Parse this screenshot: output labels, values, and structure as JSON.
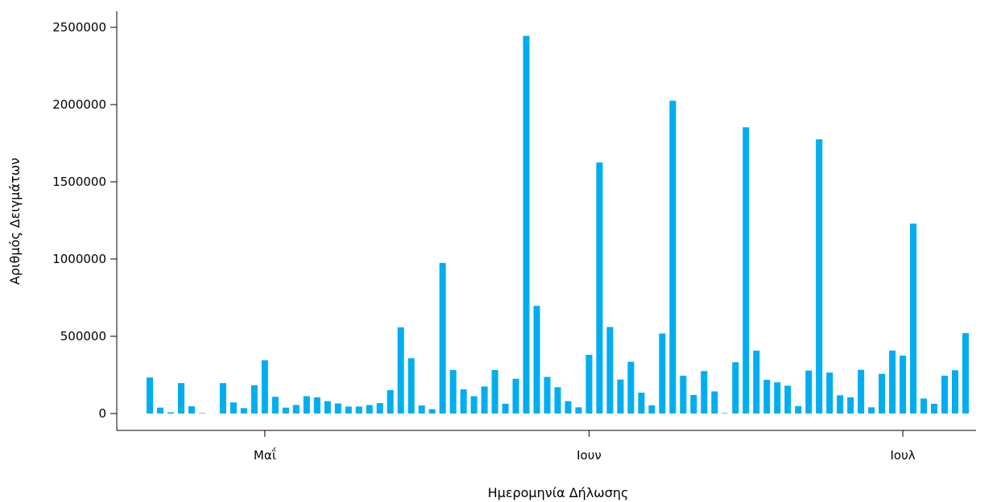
{
  "chart_data": {
    "type": "bar",
    "xlabel": "Ημερομηνία Δήλωσης",
    "ylabel": "Αριθμός Δειγμάτων",
    "x_tick_labels": [
      "Μαΐ",
      "Ιουν",
      "Ιουλ"
    ],
    "x_ticks": [
      "2021-05-01",
      "2021-06-01",
      "2021-07-01"
    ],
    "y_ticks": [
      0,
      500000,
      1000000,
      1500000,
      2000000,
      2500000
    ],
    "ylim": [
      0,
      2500000
    ],
    "xlim": [
      "2021-04-19",
      "2021-07-08"
    ],
    "bar_color": "#00AEEF",
    "grid": false,
    "x": [
      "2021-04-20",
      "2021-04-21",
      "2021-04-22",
      "2021-04-23",
      "2021-04-24",
      "2021-04-25",
      "2021-04-26",
      "2021-04-27",
      "2021-04-28",
      "2021-04-29",
      "2021-04-30",
      "2021-05-01",
      "2021-05-02",
      "2021-05-03",
      "2021-05-04",
      "2021-05-05",
      "2021-05-06",
      "2021-05-07",
      "2021-05-08",
      "2021-05-09",
      "2021-05-10",
      "2021-05-11",
      "2021-05-12",
      "2021-05-13",
      "2021-05-14",
      "2021-05-15",
      "2021-05-16",
      "2021-05-17",
      "2021-05-18",
      "2021-05-19",
      "2021-05-20",
      "2021-05-21",
      "2021-05-22",
      "2021-05-23",
      "2021-05-24",
      "2021-05-25",
      "2021-05-26",
      "2021-05-27",
      "2021-05-28",
      "2021-05-29",
      "2021-05-30",
      "2021-05-31",
      "2021-06-01",
      "2021-06-02",
      "2021-06-03",
      "2021-06-04",
      "2021-06-05",
      "2021-06-06",
      "2021-06-07",
      "2021-06-08",
      "2021-06-09",
      "2021-06-10",
      "2021-06-11",
      "2021-06-12",
      "2021-06-13",
      "2021-06-14",
      "2021-06-15",
      "2021-06-16",
      "2021-06-17",
      "2021-06-18",
      "2021-06-19",
      "2021-06-20",
      "2021-06-21",
      "2021-06-22",
      "2021-06-23",
      "2021-06-24",
      "2021-06-25",
      "2021-06-26",
      "2021-06-27",
      "2021-06-28",
      "2021-06-29",
      "2021-06-30",
      "2021-07-01",
      "2021-07-02",
      "2021-07-03",
      "2021-07-04",
      "2021-07-05",
      "2021-07-06",
      "2021-07-07"
    ],
    "values": [
      233000,
      38000,
      8000,
      197000,
      47000,
      3000,
      0,
      197000,
      72000,
      35000,
      183000,
      345000,
      108000,
      38000,
      55000,
      112000,
      105000,
      80000,
      65000,
      45000,
      45000,
      55000,
      67000,
      152000,
      558000,
      358000,
      52000,
      28000,
      975000,
      282000,
      157000,
      112000,
      175000,
      282000,
      63000,
      225000,
      2445000,
      697000,
      237000,
      170000,
      80000,
      40000,
      380000,
      1625000,
      560000,
      220000,
      335000,
      135000,
      53000,
      518000,
      2025000,
      245000,
      120000,
      275000,
      143000,
      3000,
      332000,
      1853000,
      407000,
      218000,
      202000,
      180000,
      48000,
      278000,
      1775000,
      265000,
      118000,
      105000,
      283000,
      40000,
      257000,
      408000,
      375000,
      1230000,
      97000,
      63000,
      245000,
      280000,
      520000
    ]
  }
}
